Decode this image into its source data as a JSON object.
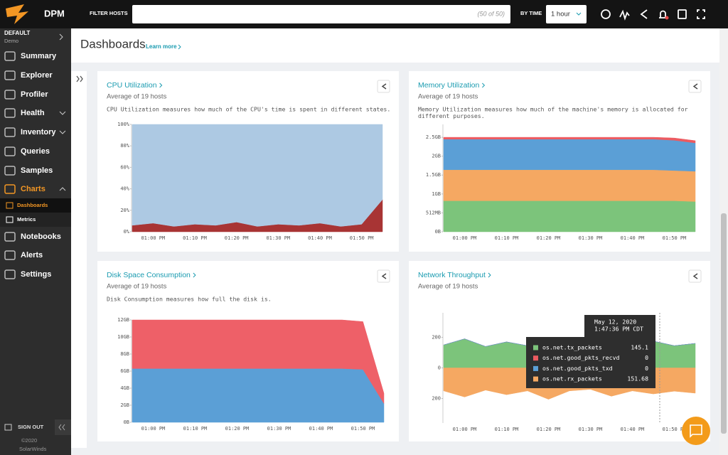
{
  "topbar": {
    "brand": "DPM",
    "filter_label": "FILTER HOSTS",
    "filter_count": "(50 of 50)",
    "time_label": "BY TIME",
    "time_value": "1 hour"
  },
  "sidebar": {
    "org": "DEFAULT",
    "org_sub": "Demo",
    "items": [
      "Summary",
      "Explorer",
      "Profiler",
      "Health",
      "Inventory",
      "Queries",
      "Samples",
      "Charts",
      "Notebooks",
      "Alerts",
      "Settings"
    ],
    "sub_items": [
      "Dashboards",
      "Metrics"
    ],
    "sign_out": "SIGN OUT",
    "copyright": "©2020",
    "company": "SolarWinds"
  },
  "header": {
    "title": "Dashboards",
    "link": "Learn more"
  },
  "chart_data": [
    {
      "type": "area",
      "stacked": true,
      "title": "CPU Utilization",
      "subtitle": "Average of 19 hosts",
      "description": [
        "CPU Utilization measures how much of the CPU's time is spent in different states."
      ],
      "categories": [
        null,
        "01:00 PM",
        null,
        "01:10 PM",
        null,
        "01:20 PM",
        null,
        "01:30 PM",
        null,
        "01:40 PM",
        null,
        "01:50 PM",
        null
      ],
      "series": [
        {
          "color": "#a83434",
          "values": [
            6,
            8,
            5,
            7,
            6,
            9,
            5,
            7,
            6,
            8,
            5,
            7,
            30
          ]
        },
        {
          "color": "#adc9e3",
          "values": [
            94,
            92,
            95,
            93,
            94,
            91,
            95,
            93,
            94,
            92,
            95,
            93,
            70
          ]
        }
      ],
      "ylim": [
        0,
        100
      ],
      "yticks": [
        {
          "value": 0,
          "label": "0%"
        },
        {
          "value": 20,
          "label": "20%"
        },
        {
          "value": 40,
          "label": "40%"
        },
        {
          "value": 60,
          "label": "60%"
        },
        {
          "value": 80,
          "label": "80%"
        },
        {
          "value": 100,
          "label": "100%"
        }
      ]
    },
    {
      "type": "area",
      "stacked": true,
      "title": "Memory Utilization",
      "subtitle": "Average of 19 hosts",
      "description": [
        "Memory Utilization measures how much of the machine's memory is allocated for",
        "different purposes."
      ],
      "categories": [
        null,
        "01:00 PM",
        null,
        "01:10 PM",
        null,
        "01:20 PM",
        null,
        "01:30 PM",
        null,
        "01:40 PM",
        null,
        "01:50 PM",
        null
      ],
      "series": [
        {
          "color": "#7cc47b",
          "values": [
            0.82,
            0.82,
            0.82,
            0.82,
            0.82,
            0.82,
            0.82,
            0.82,
            0.82,
            0.82,
            0.82,
            0.82,
            0.8
          ]
        },
        {
          "color": "#f5a862",
          "values": [
            0.82,
            0.82,
            0.82,
            0.82,
            0.82,
            0.82,
            0.82,
            0.82,
            0.82,
            0.82,
            0.82,
            0.8,
            0.8
          ]
        },
        {
          "color": "#5b9fd6",
          "values": [
            0.81,
            0.81,
            0.81,
            0.81,
            0.81,
            0.81,
            0.81,
            0.81,
            0.81,
            0.81,
            0.81,
            0.8,
            0.75
          ]
        },
        {
          "color": "#ec5b61",
          "values": [
            0.05,
            0.05,
            0.05,
            0.05,
            0.05,
            0.05,
            0.05,
            0.05,
            0.05,
            0.05,
            0.05,
            0.06,
            0.06
          ]
        }
      ],
      "ylim": [
        0,
        2.84
      ],
      "yticks": [
        {
          "value": 0,
          "label": "0B"
        },
        {
          "value": 0.5,
          "label": "512MB"
        },
        {
          "value": 1,
          "label": "1GB"
        },
        {
          "value": 1.5,
          "label": "1.5GB"
        },
        {
          "value": 2,
          "label": "2GB"
        },
        {
          "value": 2.5,
          "label": "2.5GB"
        }
      ]
    },
    {
      "type": "area",
      "stacked": true,
      "title": "Disk Space Consumption",
      "subtitle": "Average of 19 hosts",
      "description": [
        "Disk Consumption measures how full the disk is."
      ],
      "categories": [
        null,
        "01:00 PM",
        null,
        "01:10 PM",
        null,
        "01:20 PM",
        null,
        "01:30 PM",
        null,
        "01:40 PM",
        null,
        "01:50 PM",
        null
      ],
      "series": [
        {
          "color": "#5b9fd6",
          "values": [
            6.3,
            6.3,
            6.3,
            6.3,
            6.3,
            6.3,
            6.3,
            6.3,
            6.3,
            6.3,
            6.3,
            6.2,
            2.2
          ]
        },
        {
          "color": "#ee6068",
          "values": [
            5.7,
            5.7,
            5.7,
            5.7,
            5.7,
            5.7,
            5.7,
            5.7,
            5.7,
            5.7,
            5.7,
            5.6,
            1.2
          ]
        }
      ],
      "ylim": [
        0,
        12
      ],
      "yticks": [
        {
          "value": 0,
          "label": "0B"
        },
        {
          "value": 2,
          "label": "2GB"
        },
        {
          "value": 4,
          "label": "4GB"
        },
        {
          "value": 6,
          "label": "6GB"
        },
        {
          "value": 8,
          "label": "8GB"
        },
        {
          "value": 10,
          "label": "10GB"
        },
        {
          "value": 12,
          "label": "12GB"
        }
      ]
    },
    {
      "type": "area",
      "stacked": true,
      "title": "Network Throughput",
      "subtitle": "Average of 19 hosts",
      "description": [],
      "categories": [
        null,
        "01:00 PM",
        null,
        "01:10 PM",
        null,
        "01:20 PM",
        null,
        "01:30 PM",
        null,
        "01:40 PM",
        null,
        "01:50 PM",
        null
      ],
      "series": [
        {
          "name": "os.net.tx_packets",
          "color": "#7cc47b",
          "values": [
            150,
            190,
            140,
            170,
            145,
            200,
            150,
            135,
            185,
            145,
            175,
            145,
            160
          ]
        },
        {
          "name": "os.net.good_pkts_recvd",
          "color": "#ec5b61",
          "values": [
            0,
            0,
            0,
            0,
            0,
            0,
            0,
            0,
            0,
            0,
            0,
            0,
            0
          ]
        },
        {
          "name": "os.net.good_pkts_txd",
          "color": "#5b9fd6",
          "values": [
            0,
            0,
            0,
            0,
            0,
            0,
            0,
            0,
            0,
            0,
            0,
            0,
            0
          ]
        },
        {
          "name": "os.net.rx_packets",
          "color": "#f5a862",
          "values": [
            -150,
            -190,
            -145,
            -175,
            -150,
            -205,
            -150,
            -140,
            -185,
            -150,
            -170,
            -152,
            -165
          ]
        }
      ],
      "ylim": [
        -360,
        360
      ],
      "yticks": [
        {
          "value": -200,
          "label": "200"
        },
        0,
        200
      ],
      "tooltip": {
        "title": "May 12, 2020",
        "subtitle": "1:47:36 PM CDT",
        "values": [
          145.1,
          0,
          0,
          151.68
        ]
      }
    }
  ]
}
